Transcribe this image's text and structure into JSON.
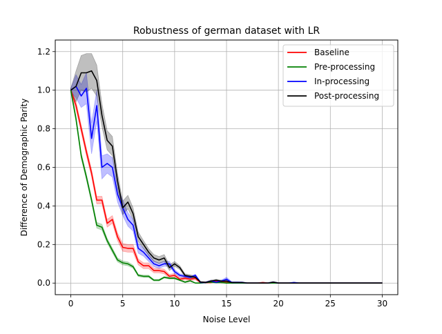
{
  "chart_data": {
    "type": "line",
    "title": "Robustness of german dataset with LR",
    "xlabel": "Noise Level",
    "ylabel": "Difference of Demographic Parity",
    "xlim": [
      -1.5,
      31.5
    ],
    "ylim": [
      -0.06,
      1.26
    ],
    "xticks": [
      0,
      5,
      10,
      15,
      20,
      25,
      30
    ],
    "yticks": [
      0.0,
      0.2,
      0.4,
      0.6,
      0.8,
      1.0,
      1.2
    ],
    "xtick_labels": [
      "0",
      "5",
      "10",
      "15",
      "20",
      "25",
      "30"
    ],
    "ytick_labels": [
      "0.0",
      "0.2",
      "0.4",
      "0.6",
      "0.8",
      "1.0",
      "1.2"
    ],
    "grid": true,
    "legend_position": "top-right",
    "x": [
      0,
      0.5,
      1,
      1.5,
      2,
      2.5,
      3,
      3.5,
      4,
      4.5,
      5,
      5.5,
      6,
      6.5,
      7,
      7.5,
      8,
      8.5,
      9,
      9.5,
      10,
      10.5,
      11,
      11.5,
      12,
      12.5,
      13,
      13.5,
      14,
      14.5,
      15,
      15.5,
      16,
      16.5,
      17,
      17.5,
      18,
      18.5,
      19,
      19.5,
      20,
      20.5,
      21,
      21.5,
      22,
      22.5,
      23,
      23.5,
      24,
      24.5,
      25,
      25.5,
      26,
      26.5,
      27,
      27.5,
      28,
      28.5,
      29,
      29.5,
      30
    ],
    "series": [
      {
        "name": "Baseline",
        "color": "#ff0000",
        "values": [
          1.0,
          0.92,
          0.8,
          0.68,
          0.57,
          0.43,
          0.43,
          0.31,
          0.33,
          0.24,
          0.185,
          0.18,
          0.18,
          0.11,
          0.09,
          0.09,
          0.065,
          0.065,
          0.06,
          0.035,
          0.04,
          0.02,
          0.025,
          0.02,
          0.025,
          0.003,
          0.003,
          0.003,
          0.01,
          0.003,
          0.003,
          0.0,
          0.0,
          0.0,
          0.0,
          0.0,
          0.0,
          0.003,
          0.0,
          0.0,
          0.0,
          0.0,
          0.0,
          0.0,
          0.0,
          0.0,
          0.0,
          0.0,
          0.0,
          0.0,
          0.0,
          0.0,
          0.0,
          0.0,
          0.0,
          0.0,
          0.0,
          0.0,
          0.0,
          0.0,
          0.0
        ],
        "band": [
          0.01,
          0.02,
          0.02,
          0.02,
          0.02,
          0.02,
          0.02,
          0.02,
          0.02,
          0.02,
          0.02,
          0.02,
          0.02,
          0.015,
          0.015,
          0.015,
          0.012,
          0.012,
          0.012,
          0.01,
          0.01,
          0.008,
          0.008,
          0.008,
          0.008,
          0.004,
          0.004,
          0.004,
          0.004,
          0.004,
          0.004,
          0.002,
          0.002,
          0.002,
          0.002,
          0.002,
          0.002,
          0.002,
          0.002,
          0.002,
          0.002,
          0.002,
          0.002,
          0.002,
          0.002,
          0.002,
          0.002,
          0.002,
          0.002,
          0.002,
          0.002,
          0.002,
          0.002,
          0.002,
          0.002,
          0.002,
          0.002,
          0.002,
          0.002,
          0.002,
          0.002
        ]
      },
      {
        "name": "Pre-processing",
        "color": "#008000",
        "values": [
          1.0,
          0.85,
          0.66,
          0.55,
          0.43,
          0.3,
          0.29,
          0.22,
          0.17,
          0.12,
          0.105,
          0.1,
          0.085,
          0.04,
          0.035,
          0.035,
          0.015,
          0.015,
          0.03,
          0.025,
          0.025,
          0.015,
          0.005,
          0.012,
          0.0,
          0.0,
          0.003,
          0.005,
          0.003,
          0.003,
          0.0,
          0.0,
          0.0,
          0.0,
          0.0,
          0.0,
          0.0,
          0.0,
          0.0,
          0.0,
          0.0,
          0.0,
          0.0,
          0.0,
          0.0,
          0.0,
          0.0,
          0.0,
          0.0,
          0.0,
          0.0,
          0.0,
          0.0,
          0.0,
          0.0,
          0.0,
          0.0,
          0.0,
          0.0,
          0.0,
          0.0
        ],
        "band": [
          0.01,
          0.015,
          0.015,
          0.015,
          0.015,
          0.015,
          0.015,
          0.012,
          0.012,
          0.01,
          0.01,
          0.01,
          0.008,
          0.006,
          0.006,
          0.006,
          0.004,
          0.004,
          0.004,
          0.004,
          0.004,
          0.003,
          0.003,
          0.003,
          0.002,
          0.002,
          0.002,
          0.002,
          0.002,
          0.002,
          0.002,
          0.002,
          0.002,
          0.002,
          0.002,
          0.002,
          0.002,
          0.002,
          0.002,
          0.002,
          0.002,
          0.002,
          0.002,
          0.002,
          0.002,
          0.002,
          0.002,
          0.002,
          0.002,
          0.002,
          0.002,
          0.002,
          0.002,
          0.002,
          0.002,
          0.002,
          0.002,
          0.002,
          0.002,
          0.002,
          0.002
        ]
      },
      {
        "name": "In-processing",
        "color": "#0000ff",
        "values": [
          1.0,
          1.02,
          0.97,
          1.01,
          0.75,
          0.92,
          0.6,
          0.62,
          0.6,
          0.46,
          0.39,
          0.33,
          0.3,
          0.18,
          0.16,
          0.13,
          0.1,
          0.09,
          0.1,
          0.1,
          0.06,
          0.04,
          0.035,
          0.03,
          0.04,
          0.003,
          0.003,
          0.01,
          0.005,
          0.01,
          0.02,
          0.003,
          0.003,
          0.003,
          0.0,
          0.0,
          0.0,
          0.0,
          0.0,
          0.005,
          0.0,
          0.0,
          0.0,
          0.003,
          0.0,
          0.0,
          0.0,
          0.0,
          0.0,
          0.0,
          0.0,
          0.0,
          0.0,
          0.0,
          0.0,
          0.0,
          0.0,
          0.0,
          0.0,
          0.0,
          0.0
        ],
        "band": [
          0.01,
          0.06,
          0.06,
          0.08,
          0.08,
          0.08,
          0.06,
          0.05,
          0.05,
          0.04,
          0.04,
          0.035,
          0.03,
          0.025,
          0.02,
          0.018,
          0.015,
          0.013,
          0.013,
          0.013,
          0.01,
          0.008,
          0.008,
          0.006,
          0.006,
          0.004,
          0.004,
          0.006,
          0.005,
          0.006,
          0.01,
          0.005,
          0.005,
          0.004,
          0.002,
          0.002,
          0.002,
          0.002,
          0.002,
          0.003,
          0.002,
          0.002,
          0.002,
          0.002,
          0.002,
          0.002,
          0.002,
          0.002,
          0.002,
          0.002,
          0.002,
          0.002,
          0.002,
          0.002,
          0.002,
          0.002,
          0.002,
          0.002,
          0.002,
          0.002,
          0.002
        ]
      },
      {
        "name": "Post-processing",
        "color": "#000000",
        "values": [
          1.0,
          1.02,
          1.09,
          1.09,
          1.1,
          1.05,
          0.87,
          0.74,
          0.71,
          0.53,
          0.39,
          0.42,
          0.36,
          0.24,
          0.2,
          0.16,
          0.13,
          0.12,
          0.13,
          0.08,
          0.1,
          0.08,
          0.04,
          0.035,
          0.03,
          0.005,
          0.003,
          0.01,
          0.015,
          0.01,
          0.01,
          0.003,
          0.003,
          0.003,
          0.0,
          0.0,
          0.0,
          0.0,
          0.0,
          0.005,
          0.0,
          0.0,
          0.0,
          0.0,
          0.0,
          0.0,
          0.0,
          0.0,
          0.0,
          0.0,
          0.0,
          0.0,
          0.0,
          0.0,
          0.0,
          0.0,
          0.0,
          0.0,
          0.0,
          0.0,
          0.0
        ],
        "band": [
          0.01,
          0.08,
          0.09,
          0.1,
          0.09,
          0.08,
          0.06,
          0.05,
          0.05,
          0.04,
          0.035,
          0.035,
          0.03,
          0.025,
          0.02,
          0.018,
          0.018,
          0.018,
          0.018,
          0.015,
          0.012,
          0.01,
          0.008,
          0.008,
          0.006,
          0.004,
          0.004,
          0.005,
          0.005,
          0.005,
          0.005,
          0.003,
          0.003,
          0.003,
          0.002,
          0.002,
          0.002,
          0.002,
          0.002,
          0.002,
          0.002,
          0.002,
          0.002,
          0.002,
          0.002,
          0.002,
          0.002,
          0.002,
          0.002,
          0.002,
          0.002,
          0.002,
          0.002,
          0.002,
          0.002,
          0.002,
          0.002,
          0.002,
          0.002,
          0.002,
          0.002
        ]
      }
    ]
  }
}
